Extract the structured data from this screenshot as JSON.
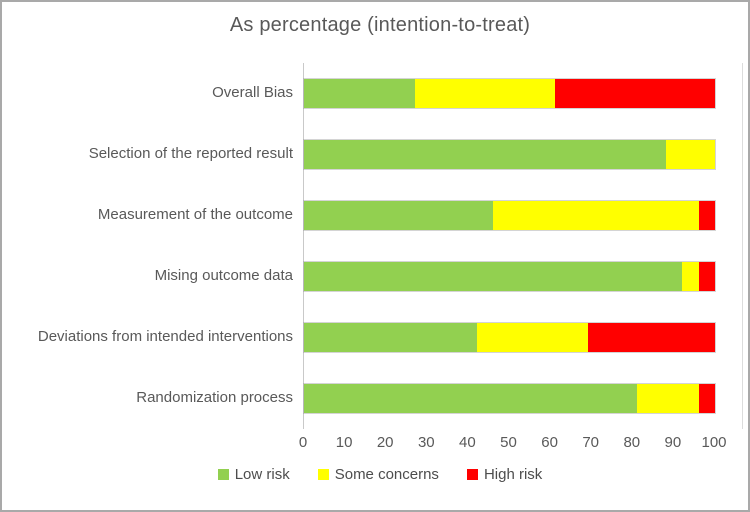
{
  "chart_data": {
    "type": "bar",
    "orientation": "horizontal",
    "stacked": true,
    "title": "As percentage (intention-to-treat)",
    "categories": [
      "Overall Bias",
      "Selection of the reported result",
      "Measurement of the outcome",
      "Mising outcome data",
      "Deviations from intended interventions",
      "Randomization process"
    ],
    "series": [
      {
        "name": "Low risk",
        "color": "#92d050",
        "values": [
          27,
          88,
          46,
          92,
          42,
          81
        ]
      },
      {
        "name": "Some concerns",
        "color": "#ffff00",
        "values": [
          34,
          12,
          50,
          4,
          27,
          15
        ]
      },
      {
        "name": "High risk",
        "color": "#ff0000",
        "values": [
          39,
          0,
          4,
          4,
          31,
          4
        ]
      }
    ],
    "xlabel": "",
    "ylabel": "",
    "xlim": [
      0,
      100
    ],
    "xticks": [
      0,
      10,
      20,
      30,
      40,
      50,
      60,
      70,
      80,
      90,
      100
    ],
    "legend_position": "bottom",
    "grid": "none"
  }
}
